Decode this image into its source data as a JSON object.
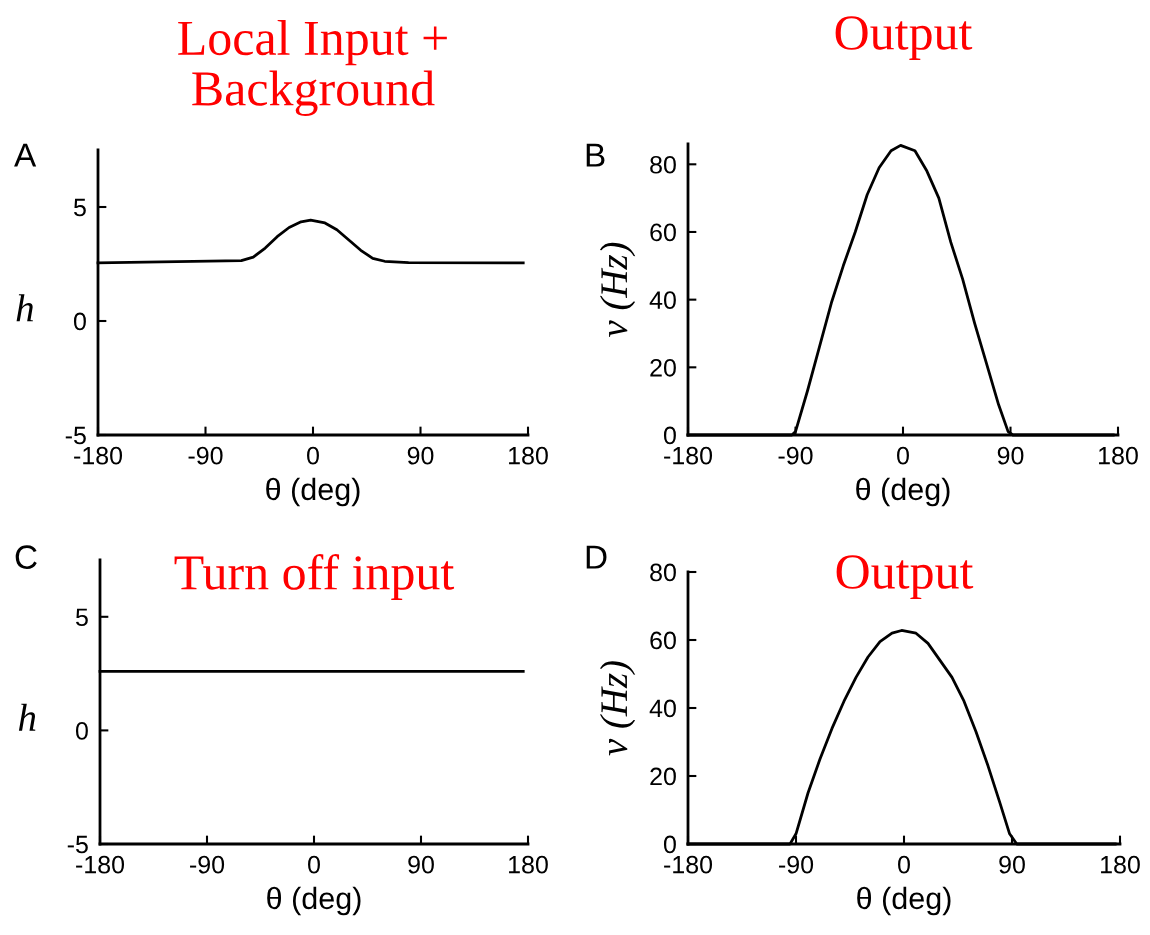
{
  "chart_data": [
    {
      "type": "line",
      "title": "Local Input +\nBackground",
      "xlabel": "θ (deg)",
      "ylabel": "h",
      "annotations": [
        "A"
      ],
      "series": [
        {
          "color": "#000000",
          "x": [
            -180,
            -60,
            -50,
            -40,
            -30,
            -20,
            -10,
            -2,
            10,
            20,
            30,
            40,
            50,
            60,
            80,
            176
          ],
          "values": [
            2.55,
            2.65,
            2.8,
            3.2,
            3.7,
            4.1,
            4.35,
            4.42,
            4.3,
            4.0,
            3.55,
            3.1,
            2.75,
            2.62,
            2.56,
            2.55
          ]
        }
      ],
      "xlim": [
        -180,
        180
      ],
      "xticks": [
        -180,
        -90,
        0,
        90,
        180
      ],
      "ylim": [
        -5,
        7.5
      ],
      "yticks": [
        -5,
        0,
        5
      ],
      "grid": false,
      "legend": false,
      "line_style": "solid"
    },
    {
      "type": "line",
      "title": "Output",
      "xlabel": "θ (deg)",
      "ylabel": "v (Hz)",
      "annotations": [
        "B"
      ],
      "series": [
        {
          "color": "#000000",
          "x": [
            -180,
            -93,
            -90,
            -80,
            -70,
            -60,
            -50,
            -40,
            -30,
            -20,
            -10,
            -2,
            10,
            20,
            30,
            40,
            50,
            60,
            70,
            80,
            88,
            92,
            176
          ],
          "values": [
            0,
            0,
            1,
            13,
            26,
            39,
            50,
            60,
            71,
            79,
            84,
            85.6,
            84,
            78,
            70,
            57,
            46,
            33,
            21,
            9,
            1,
            0,
            0
          ]
        }
      ],
      "xlim": [
        -180,
        180
      ],
      "xticks": [
        -180,
        -90,
        0,
        90,
        180
      ],
      "ylim": [
        0,
        86
      ],
      "yticks": [
        0,
        20,
        40,
        60,
        80
      ],
      "grid": false,
      "legend": false,
      "line_style": "solid"
    },
    {
      "type": "line",
      "title": "Turn off input",
      "xlabel": "θ (deg)",
      "ylabel": "h",
      "annotations": [
        "C"
      ],
      "series": [
        {
          "color": "#000000",
          "x": [
            -180,
            176
          ],
          "values": [
            2.6,
            2.6
          ]
        }
      ],
      "xlim": [
        -180,
        180
      ],
      "xticks": [
        -180,
        -90,
        0,
        90,
        180
      ],
      "ylim": [
        -5,
        7.5
      ],
      "yticks": [
        -5,
        0,
        5
      ],
      "grid": false,
      "legend": false,
      "line_style": "solid"
    },
    {
      "type": "line",
      "title": "Output",
      "xlabel": "θ (deg)",
      "ylabel": "v (Hz)",
      "annotations": [
        "D"
      ],
      "series": [
        {
          "color": "#000000",
          "x": [
            -180,
            -95,
            -90,
            -80,
            -70,
            -60,
            -50,
            -40,
            -30,
            -20,
            -10,
            -2,
            10,
            20,
            30,
            40,
            50,
            60,
            70,
            80,
            88,
            94,
            176
          ],
          "values": [
            0,
            0,
            3,
            15,
            25,
            34,
            42,
            49,
            55,
            59.5,
            62,
            62.8,
            62,
            59,
            54,
            49,
            42,
            33,
            23,
            12,
            3,
            0,
            0
          ]
        }
      ],
      "xlim": [
        -180,
        180
      ],
      "xticks": [
        -180,
        -90,
        0,
        90,
        180
      ],
      "ylim": [
        0,
        80
      ],
      "yticks": [
        0,
        20,
        40,
        60,
        80
      ],
      "grid": false,
      "legend": false,
      "line_style": "solid"
    }
  ]
}
